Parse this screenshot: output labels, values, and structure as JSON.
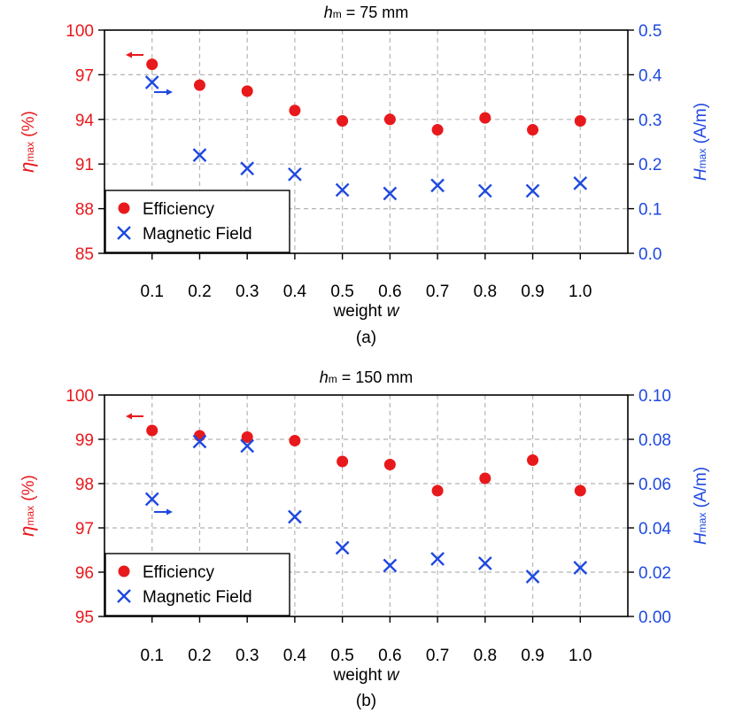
{
  "chart_data": [
    {
      "type": "scatter",
      "title_var": "h",
      "title_sub": "m",
      "title_rest": " = 75 mm",
      "caption": "(a)",
      "xlabel_text": "weight ",
      "xlabel_var": "w",
      "x": [
        0.1,
        0.2,
        0.3,
        0.4,
        0.5,
        0.6,
        0.7,
        0.8,
        0.9,
        1.0
      ],
      "xtick_labels": [
        "0.1",
        "0.2",
        "0.3",
        "0.4",
        "0.5",
        "0.6",
        "0.7",
        "0.8",
        "0.9",
        "1.0"
      ],
      "ylabel_left": {
        "sym": "η",
        "sub": "max",
        "unit": " (%)"
      },
      "ylabel_right": {
        "sym": "H",
        "sub": "max",
        "unit": " (A/m)"
      },
      "ylim_left": [
        85,
        100
      ],
      "yticks_left": [
        "85",
        "88",
        "91",
        "94",
        "97",
        "100"
      ],
      "ylim_right": [
        0,
        0.5
      ],
      "yticks_right": [
        "0.0",
        "0.1",
        "0.2",
        "0.3",
        "0.4",
        "0.5"
      ],
      "series": [
        {
          "name": "Efficiency",
          "axis": "left",
          "marker": "circle",
          "color": "#e8191c",
          "values": [
            97.7,
            96.3,
            95.9,
            94.6,
            93.9,
            94.0,
            93.3,
            94.1,
            93.3,
            93.9
          ]
        },
        {
          "name": "Magnetic Field",
          "axis": "right",
          "marker": "x",
          "color": "#1f49e0",
          "values": [
            0.383,
            0.22,
            0.19,
            0.177,
            0.142,
            0.134,
            0.152,
            0.14,
            0.14,
            0.157
          ]
        }
      ],
      "legend_location": "lower-left",
      "grid": true
    },
    {
      "type": "scatter",
      "title_var": "h",
      "title_sub": "m",
      "title_rest": " = 150 mm",
      "caption": "(b)",
      "xlabel_text": "weight ",
      "xlabel_var": "w",
      "x": [
        0.1,
        0.2,
        0.3,
        0.4,
        0.5,
        0.6,
        0.7,
        0.8,
        0.9,
        1.0
      ],
      "xtick_labels": [
        "0.1",
        "0.2",
        "0.3",
        "0.4",
        "0.5",
        "0.6",
        "0.7",
        "0.8",
        "0.9",
        "1.0"
      ],
      "ylabel_left": {
        "sym": "η",
        "sub": "max",
        "unit": " (%)"
      },
      "ylabel_right": {
        "sym": "H",
        "sub": "max",
        "unit": " (A/m)"
      },
      "ylim_left": [
        95,
        100
      ],
      "yticks_left": [
        "95",
        "96",
        "97",
        "98",
        "99",
        "100"
      ],
      "ylim_right": [
        0,
        0.1
      ],
      "yticks_right": [
        "0.00",
        "0.02",
        "0.04",
        "0.06",
        "0.08",
        "0.10"
      ],
      "series": [
        {
          "name": "Efficiency",
          "axis": "left",
          "marker": "circle",
          "color": "#e8191c",
          "values": [
            99.2,
            99.08,
            99.05,
            98.97,
            98.5,
            98.43,
            97.84,
            98.12,
            98.53,
            97.84
          ]
        },
        {
          "name": "Magnetic Field",
          "axis": "right",
          "marker": "x",
          "color": "#1f49e0",
          "values": [
            0.053,
            0.079,
            0.077,
            0.045,
            0.031,
            0.023,
            0.026,
            0.024,
            0.018,
            0.022
          ]
        }
      ],
      "legend_location": "lower-left",
      "grid": true
    }
  ]
}
